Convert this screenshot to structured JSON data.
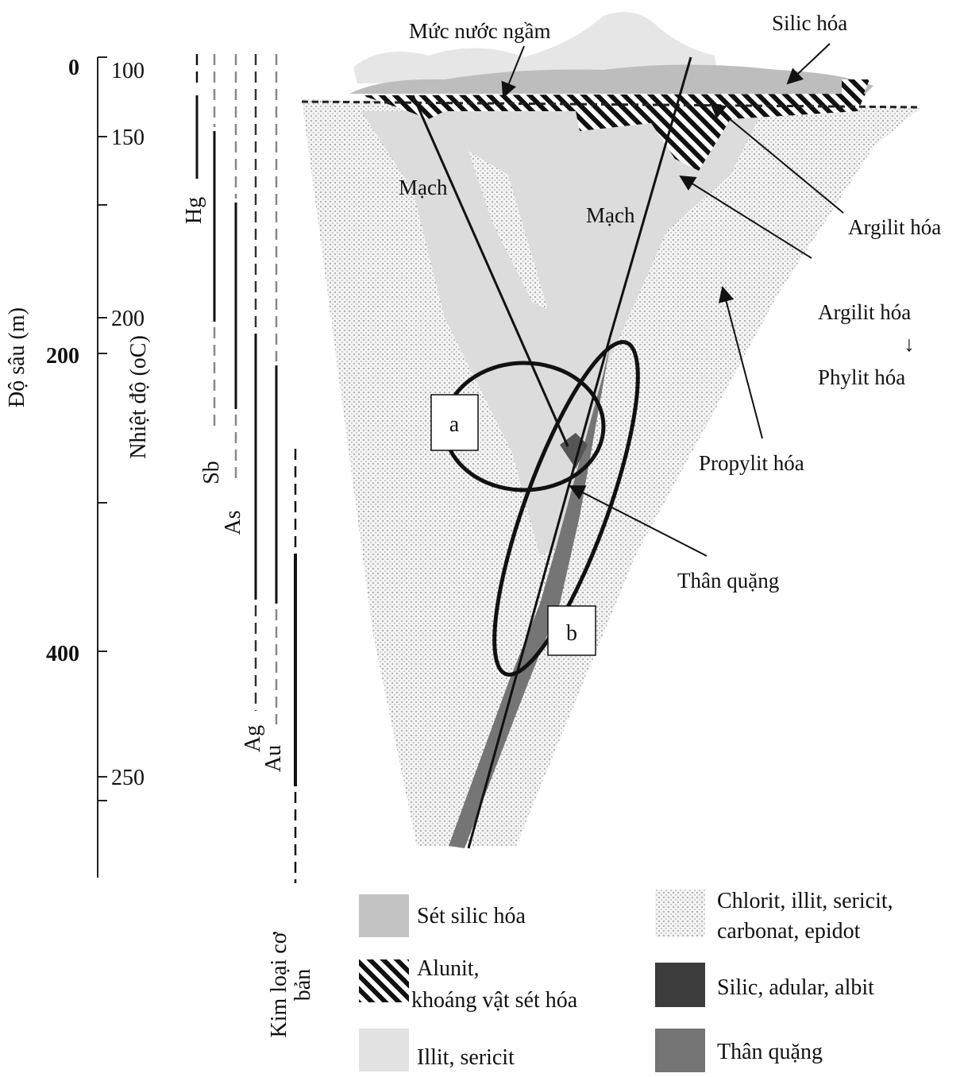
{
  "depth_axis": {
    "label": "Độ sâu (m)",
    "ticks": [
      0,
      200,
      400
    ]
  },
  "temperature_axis": {
    "label": "Nhiệt độ (oC)",
    "ticks": [
      100,
      150,
      200,
      250
    ]
  },
  "elements": [
    "Hg",
    "Sb",
    "As",
    "Ag",
    "Au"
  ],
  "base_metals": [
    "Kim loại cơ",
    "bản"
  ],
  "labels": {
    "water_table": "Mức nước ngầm",
    "silic": "Silic hóa",
    "vein_left": "Mạch",
    "vein_right": "Mạch",
    "argilit": "Argilit hóa",
    "argilit_2": "Argilit hóa",
    "arrow_down": "↓",
    "phylit": "Phylit hóa",
    "propylit": "Propylit hóa",
    "ore_body": "Thân quặng",
    "zone_a": "a",
    "zone_b": "b"
  },
  "legend": [
    {
      "lines": [
        "Sét silic hóa"
      ]
    },
    {
      "lines": [
        "Alunit,",
        "khoáng vật sét hóa"
      ]
    },
    {
      "lines": [
        "Illit, sericit"
      ]
    },
    {
      "lines": [
        "Chlorit, illit, sericit,",
        "carbonat, epidot"
      ]
    },
    {
      "lines": [
        "Silic, adular, albit"
      ]
    },
    {
      "lines": [
        "Thân quặng"
      ]
    }
  ]
}
